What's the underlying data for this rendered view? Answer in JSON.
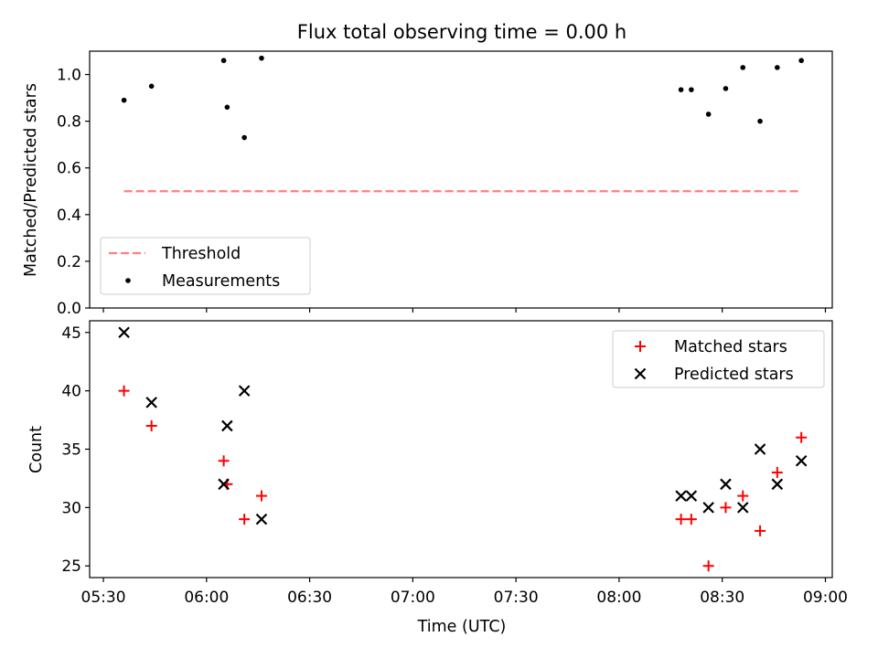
{
  "figure": {
    "title": "Flux total observing time = 0.00 h"
  },
  "chart_data": [
    {
      "type": "scatter",
      "ylabel": "Matched/Predicted stars",
      "xlabel": "",
      "ylim": [
        0.0,
        1.1
      ],
      "xlim": [
        "05:26",
        "09:02"
      ],
      "yticks": [
        0.0,
        0.2,
        0.4,
        0.6,
        0.8,
        1.0
      ],
      "ytick_labels": [
        "0.0",
        "0.2",
        "0.4",
        "0.6",
        "0.8",
        "1.0"
      ],
      "grid": false,
      "legend": {
        "placement": "lower left",
        "entries": [
          {
            "label": "Threshold",
            "marker": "dashed-line",
            "color": "#ff7f7f"
          },
          {
            "label": "Measurements",
            "marker": "dot",
            "color": "#000000"
          }
        ]
      },
      "series": [
        {
          "name": "Threshold",
          "kind": "line",
          "style": "dashed",
          "color": "#ff7f7f",
          "x": [
            "05:36",
            "08:53"
          ],
          "y": [
            0.5,
            0.5
          ]
        },
        {
          "name": "Measurements",
          "kind": "scatter",
          "marker": "dot",
          "color": "#000000",
          "x": [
            "05:36",
            "05:44",
            "06:05",
            "06:06",
            "06:11",
            "06:16",
            "08:18",
            "08:21",
            "08:26",
            "08:31",
            "08:36",
            "08:41",
            "08:46",
            "08:53"
          ],
          "y": [
            0.89,
            0.95,
            1.06,
            0.86,
            0.73,
            1.07,
            0.935,
            0.935,
            0.83,
            0.94,
            1.03,
            0.8,
            1.03,
            1.06
          ]
        }
      ]
    },
    {
      "type": "scatter",
      "ylabel": "Count",
      "xlabel": "Time (UTC)",
      "ylim": [
        24,
        46
      ],
      "xlim": [
        "05:26",
        "09:02"
      ],
      "yticks": [
        25,
        30,
        35,
        40,
        45
      ],
      "ytick_labels": [
        "25",
        "30",
        "35",
        "40",
        "45"
      ],
      "xticks": [
        "05:30",
        "06:00",
        "06:30",
        "07:00",
        "07:30",
        "08:00",
        "08:30",
        "09:00"
      ],
      "grid": false,
      "legend": {
        "placement": "top-right",
        "entries": [
          {
            "label": "Matched stars",
            "marker": "plus",
            "color": "#ff0000"
          },
          {
            "label": "Predicted stars",
            "marker": "x",
            "color": "#000000"
          }
        ]
      },
      "series": [
        {
          "name": "Matched stars",
          "kind": "scatter",
          "marker": "plus",
          "color": "#ff0000",
          "x": [
            "05:36",
            "05:44",
            "06:05",
            "06:06",
            "06:11",
            "06:16",
            "08:18",
            "08:21",
            "08:26",
            "08:31",
            "08:36",
            "08:41",
            "08:46",
            "08:53"
          ],
          "y": [
            40,
            37,
            34,
            32,
            29,
            31,
            29,
            29,
            25,
            30,
            31,
            28,
            33,
            36
          ]
        },
        {
          "name": "Predicted stars",
          "kind": "scatter",
          "marker": "x",
          "color": "#000000",
          "x": [
            "05:36",
            "05:44",
            "06:05",
            "06:06",
            "06:11",
            "06:16",
            "08:18",
            "08:21",
            "08:26",
            "08:31",
            "08:36",
            "08:41",
            "08:46",
            "08:53"
          ],
          "y": [
            45,
            39,
            32,
            37,
            40,
            29,
            31,
            31,
            30,
            32,
            30,
            35,
            32,
            34
          ]
        }
      ]
    }
  ]
}
